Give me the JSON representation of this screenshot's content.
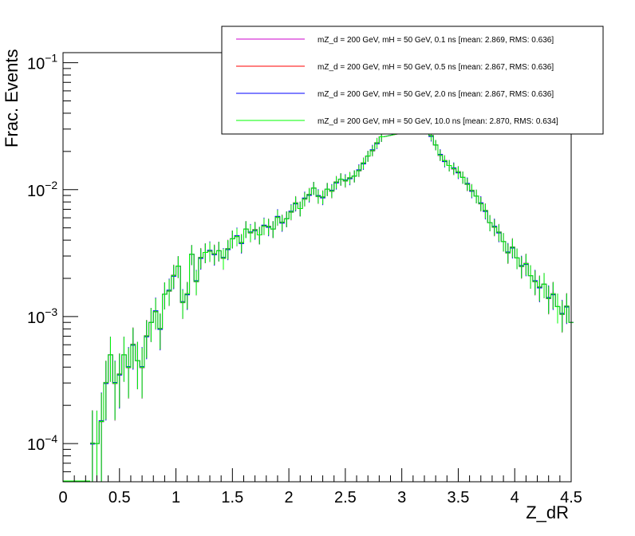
{
  "chart_data": {
    "type": "line",
    "title": "",
    "xlabel": "Z_dR",
    "ylabel": "Frac. Events",
    "xlim": [
      0,
      4.5
    ],
    "ylim": [
      5e-05,
      0.12
    ],
    "yscale": "log",
    "grid": false,
    "legend_position": "top-right",
    "x_ticks": [
      "0",
      "0.5",
      "1",
      "1.5",
      "2",
      "2.5",
      "3",
      "3.5",
      "4",
      "4.5"
    ],
    "y_ticks": [
      {
        "base": "10",
        "exp": "−4"
      },
      {
        "base": "10",
        "exp": "−3"
      },
      {
        "base": "10",
        "exp": "−2"
      },
      {
        "base": "10",
        "exp": "−1"
      }
    ],
    "series": [
      {
        "name": "mZ_d = 200 GeV, mH = 50 GeV, 0.1 ns [mean: 2.869, RMS: 0.636]",
        "color": "#cc00cc",
        "shift": -0.012
      },
      {
        "name": "mZ_d = 200 GeV, mH = 50 GeV, 0.5 ns [mean: 2.867, RMS: 0.636]",
        "color": "#ff0000",
        "shift": 0.0
      },
      {
        "name": "mZ_d = 200 GeV, mH = 50 GeV, 2.0 ns [mean: 2.867, RMS: 0.636]",
        "color": "#0000ff",
        "shift": 0.01
      },
      {
        "name": "mZ_d = 200 GeV, mH = 50 GeV, 10.0 ns [mean: 2.870, RMS: 0.634]",
        "color": "#00ff00",
        "shift": -0.006
      }
    ],
    "bin_width": 0.04,
    "x": [
      0.26,
      0.3,
      0.34,
      0.38,
      0.42,
      0.46,
      0.5,
      0.54,
      0.58,
      0.62,
      0.66,
      0.7,
      0.74,
      0.78,
      0.82,
      0.86,
      0.9,
      0.94,
      0.98,
      1.02,
      1.06,
      1.1,
      1.14,
      1.18,
      1.22,
      1.26,
      1.3,
      1.34,
      1.38,
      1.42,
      1.46,
      1.5,
      1.54,
      1.58,
      1.62,
      1.66,
      1.7,
      1.74,
      1.78,
      1.82,
      1.86,
      1.9,
      1.94,
      1.98,
      2.02,
      2.06,
      2.1,
      2.14,
      2.18,
      2.22,
      2.26,
      2.3,
      2.34,
      2.38,
      2.42,
      2.46,
      2.5,
      2.54,
      2.58,
      2.62,
      2.66,
      2.7,
      2.74,
      2.78,
      2.82,
      3.22,
      3.26,
      3.3,
      3.34,
      3.38,
      3.42,
      3.46,
      3.5,
      3.54,
      3.58,
      3.62,
      3.66,
      3.7,
      3.74,
      3.78,
      3.82,
      3.86,
      3.9,
      3.94,
      3.98,
      4.02,
      4.06,
      4.1,
      4.14,
      4.18,
      4.22,
      4.26,
      4.3,
      4.34,
      4.38,
      4.42,
      4.46,
      4.5
    ],
    "y": [
      0.0001,
      0.0001,
      0.00015,
      0.0003,
      0.0005,
      0.0003,
      0.00035,
      0.0005,
      0.0004,
      0.0006,
      0.00045,
      0.0004,
      0.0007,
      0.0009,
      0.0011,
      0.0008,
      0.0015,
      0.0016,
      0.0021,
      0.0025,
      0.0013,
      0.0015,
      0.0031,
      0.0019,
      0.0029,
      0.0032,
      0.0033,
      0.0031,
      0.0033,
      0.0029,
      0.0034,
      0.0041,
      0.0043,
      0.0038,
      0.0049,
      0.0046,
      0.0048,
      0.0044,
      0.0052,
      0.0051,
      0.0049,
      0.0061,
      0.0055,
      0.0059,
      0.0067,
      0.0078,
      0.0071,
      0.0085,
      0.0091,
      0.0103,
      0.0089,
      0.0087,
      0.0101,
      0.0098,
      0.0114,
      0.0121,
      0.0118,
      0.0123,
      0.0128,
      0.0142,
      0.0161,
      0.0184,
      0.0204,
      0.0232,
      0.0261,
      0.0305,
      0.0265,
      0.0225,
      0.0188,
      0.0168,
      0.0155,
      0.0147,
      0.0137,
      0.0125,
      0.0111,
      0.0098,
      0.0089,
      0.0078,
      0.0068,
      0.0055,
      0.0051,
      0.0046,
      0.0039,
      0.0032,
      0.0035,
      0.0029,
      0.0025,
      0.0026,
      0.0021,
      0.0019,
      0.0017,
      0.0018,
      0.0014,
      0.0015,
      0.0012,
      0.00105,
      0.0012,
      0.0009
    ]
  },
  "legend_label": ""
}
